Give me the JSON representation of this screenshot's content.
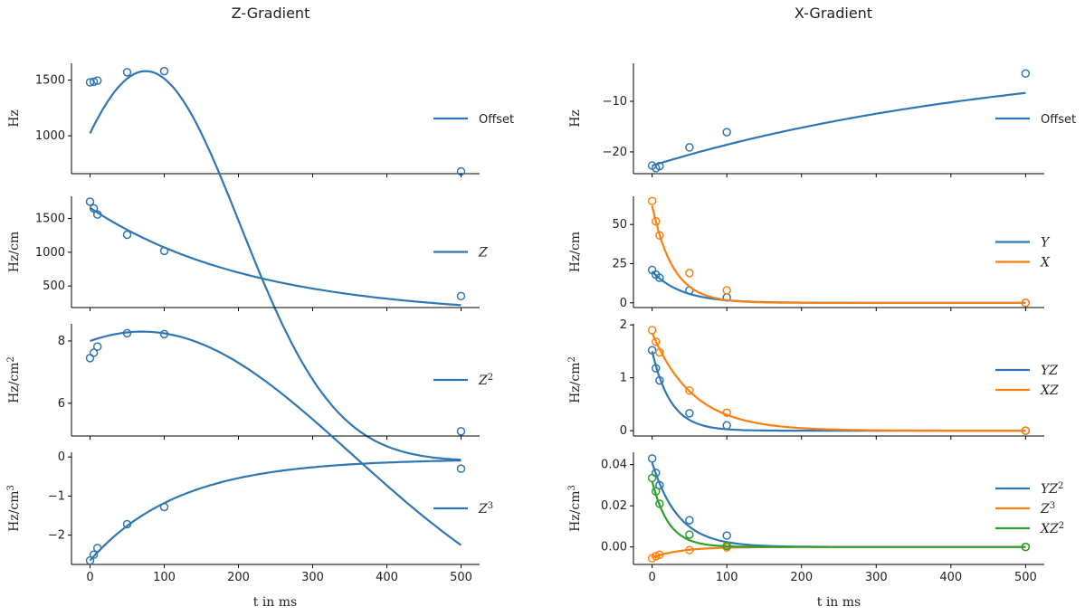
{
  "figure": {
    "x_axis_label": "t in ms",
    "column_titles": [
      "Z-Gradient",
      "X-Gradient"
    ]
  },
  "colors": {
    "blue": "#2f77b4",
    "orange": "#ff7f0e",
    "green": "#2ca02c"
  },
  "chart_data": [
    {
      "type": "line",
      "title": "Z-Gradient",
      "ylabel": "Hz",
      "xlabel": "",
      "xlim": [
        -25,
        525
      ],
      "ylim": [
        660,
        1650
      ],
      "yticks": [
        1000,
        1500
      ],
      "ytick_labels": [
        "1000",
        "1500"
      ],
      "legend_position": "right",
      "series": [
        {
          "name": "Offset",
          "color": "blue",
          "points_x": [
            0,
            5,
            10,
            50,
            100,
            500
          ],
          "points_y": [
            1480,
            1485,
            1495,
            1570,
            1580,
            680
          ],
          "fit": {
            "kind": "bell",
            "a": -1920,
            "b": 3500,
            "mu": 75,
            "sigma": 180
          }
        }
      ]
    },
    {
      "type": "line",
      "title": "",
      "ylabel": "Hz/cm",
      "xlabel": "",
      "xlim": [
        -25,
        525
      ],
      "ylim": [
        180,
        1830
      ],
      "yticks": [
        500,
        1000,
        1500
      ],
      "ytick_labels": [
        "500",
        "1000",
        "1500"
      ],
      "legend_position": "right",
      "series": [
        {
          "name": "Z",
          "label_math": true,
          "color": "blue",
          "points_x": [
            0,
            5,
            10,
            50,
            100,
            500
          ],
          "points_y": [
            1750,
            1650,
            1560,
            1260,
            1020,
            350
          ],
          "fit": {
            "kind": "exp",
            "a": 1610,
            "tau": 220,
            "c": 50
          }
        }
      ]
    },
    {
      "type": "line",
      "title": "",
      "ylabel": "Hz/cm²",
      "xlabel": "",
      "xlim": [
        -25,
        525
      ],
      "ylim": [
        4.95,
        8.55
      ],
      "yticks": [
        6,
        8
      ],
      "ytick_labels": [
        "6",
        "8"
      ],
      "legend_position": "right",
      "series": [
        {
          "name": "Z²",
          "label_math": true,
          "color": "blue",
          "points_x": [
            0,
            5,
            10,
            50,
            100,
            500
          ],
          "points_y": [
            7.45,
            7.62,
            7.82,
            8.25,
            8.22,
            5.1
          ],
          "fit": {
            "kind": "bell",
            "a": -1.7,
            "b": 10,
            "mu": 70,
            "sigma": 400
          }
        }
      ]
    },
    {
      "type": "line",
      "title": "",
      "ylabel": "Hz/cm³",
      "xlabel": "t in ms",
      "xlim": [
        -25,
        525
      ],
      "ylim": [
        -2.75,
        0.12
      ],
      "yticks": [
        -2,
        -1,
        0
      ],
      "ytick_labels": [
        "−2",
        "−1",
        "0"
      ],
      "xticks": [
        0,
        100,
        200,
        300,
        400,
        500
      ],
      "xtick_labels": [
        "0",
        "100",
        "200",
        "300",
        "400",
        "500"
      ],
      "legend_position": "right",
      "series": [
        {
          "name": "Z³",
          "label_math": true,
          "color": "blue",
          "points_x": [
            0,
            5,
            10,
            50,
            100,
            500
          ],
          "points_y": [
            -2.65,
            -2.5,
            -2.33,
            -1.72,
            -1.28,
            -0.3
          ],
          "fit": {
            "kind": "exp",
            "a": -2.6,
            "tau": 120,
            "c": -0.05
          }
        }
      ]
    },
    {
      "type": "line",
      "title": "X-Gradient",
      "ylabel": "Hz",
      "xlabel": "",
      "xlim": [
        -25,
        525
      ],
      "ylim": [
        -24.3,
        -2.5
      ],
      "yticks": [
        -20,
        -10
      ],
      "ytick_labels": [
        "−20",
        "−10"
      ],
      "legend_position": "right",
      "series": [
        {
          "name": "Offset",
          "color": "blue",
          "points_x": [
            0,
            5,
            10,
            50,
            100,
            500
          ],
          "points_y": [
            -22.7,
            -23.2,
            -22.8,
            -19.1,
            -16.1,
            -4.5
          ],
          "fit": {
            "kind": "exp",
            "a": -22.7,
            "tau": 500,
            "c": 0
          }
        }
      ]
    },
    {
      "type": "line",
      "title": "",
      "ylabel": "Hz/cm",
      "xlabel": "",
      "xlim": [
        -25,
        525
      ],
      "ylim": [
        -3,
        68
      ],
      "yticks": [
        0,
        25,
        50
      ],
      "ytick_labels": [
        "0",
        "25",
        "50"
      ],
      "legend_position": "right",
      "series": [
        {
          "name": "Y",
          "label_math": true,
          "color": "blue",
          "points_x": [
            0,
            5,
            10,
            50,
            100,
            500
          ],
          "points_y": [
            21,
            18,
            16,
            8,
            3.5,
            0
          ],
          "fit": {
            "kind": "exp",
            "a": 20,
            "tau": 40,
            "c": 0
          }
        },
        {
          "name": "X",
          "label_math": true,
          "color": "orange",
          "points_x": [
            0,
            5,
            10,
            50,
            100,
            500
          ],
          "points_y": [
            65,
            52,
            43,
            19,
            8,
            0
          ],
          "fit": {
            "kind": "exp",
            "a": 62,
            "tau": 28,
            "c": 0
          }
        }
      ]
    },
    {
      "type": "line",
      "title": "",
      "ylabel": "Hz/cm²",
      "xlabel": "",
      "xlim": [
        -25,
        525
      ],
      "ylim": [
        -0.1,
        2.02
      ],
      "yticks": [
        0,
        1,
        2
      ],
      "ytick_labels": [
        "0",
        "1",
        "2"
      ],
      "legend_position": "right",
      "series": [
        {
          "name": "YZ",
          "label_math": true,
          "color": "blue",
          "points_x": [
            0,
            5,
            10,
            50,
            100,
            500
          ],
          "points_y": [
            1.52,
            1.18,
            0.95,
            0.33,
            0.1,
            0
          ],
          "fit": {
            "kind": "exp",
            "a": 1.5,
            "tau": 25,
            "c": 0
          }
        },
        {
          "name": "XZ",
          "label_math": true,
          "color": "orange",
          "points_x": [
            0,
            5,
            10,
            50,
            100,
            500
          ],
          "points_y": [
            1.9,
            1.68,
            1.48,
            0.76,
            0.34,
            0
          ],
          "fit": {
            "kind": "exp",
            "a": 1.85,
            "tau": 55,
            "c": 0
          }
        }
      ]
    },
    {
      "type": "line",
      "title": "",
      "ylabel": "Hz/cm³",
      "xlabel": "t in ms",
      "xlim": [
        -25,
        525
      ],
      "ylim": [
        -0.0085,
        0.046
      ],
      "yticks": [
        0,
        0.02,
        0.04
      ],
      "ytick_labels": [
        "0.00",
        "0.02",
        "0.04"
      ],
      "xticks": [
        0,
        100,
        200,
        300,
        400,
        500
      ],
      "xtick_labels": [
        "0",
        "100",
        "200",
        "300",
        "400",
        "500"
      ],
      "legend_position": "right",
      "series": [
        {
          "name": "YZ²",
          "label_math": true,
          "color": "blue",
          "points_x": [
            0,
            5,
            10,
            50,
            100,
            500
          ],
          "points_y": [
            0.043,
            0.036,
            0.03,
            0.013,
            0.0055,
            0
          ],
          "fit": {
            "kind": "exp",
            "a": 0.041,
            "tau": 35,
            "c": 0
          }
        },
        {
          "name": "Z³",
          "label_math": true,
          "color": "orange",
          "points_x": [
            0,
            5,
            10,
            50,
            100,
            500
          ],
          "points_y": [
            -0.0055,
            -0.0045,
            -0.0038,
            -0.0015,
            -0.0002,
            0
          ],
          "fit": {
            "kind": "exp",
            "a": -0.0052,
            "tau": 38,
            "c": 0
          }
        },
        {
          "name": "XZ²",
          "label_math": true,
          "color": "green",
          "points_x": [
            0,
            5,
            10,
            50,
            100,
            500
          ],
          "points_y": [
            0.0335,
            0.027,
            0.021,
            0.006,
            0.0005,
            0
          ],
          "fit": {
            "kind": "exp",
            "a": 0.032,
            "tau": 22,
            "c": 0
          }
        }
      ]
    }
  ]
}
